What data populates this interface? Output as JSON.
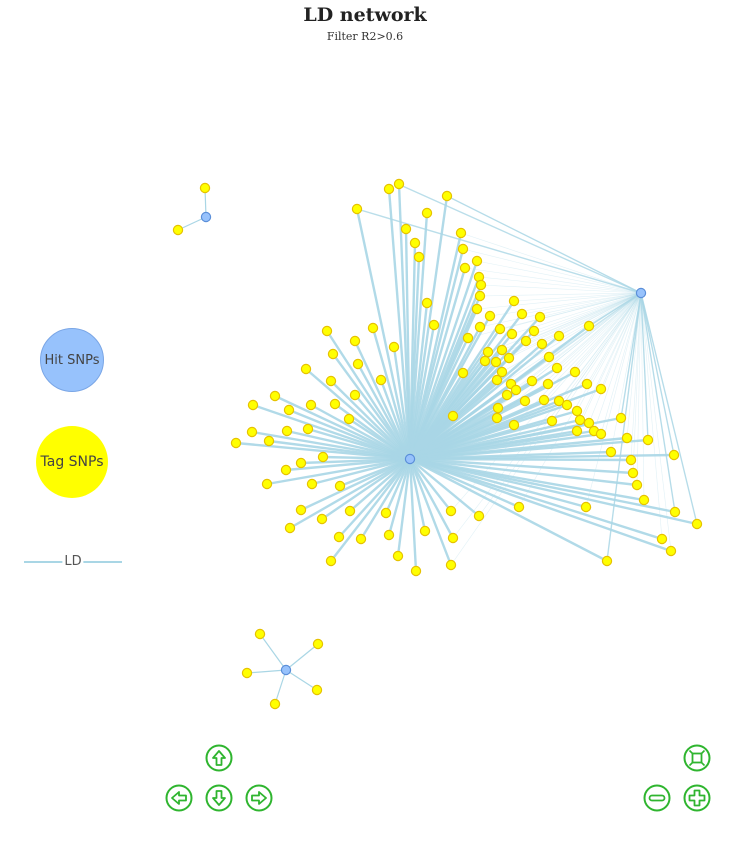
{
  "title": "LD network",
  "subtitle": "Filter R2>0.6",
  "legend": {
    "hit_label": "Hit SNPs",
    "tag_label": "Tag SNPs",
    "ld_label": "LD"
  },
  "colors": {
    "hit": "#97c2fc",
    "tag": "#ffff00",
    "edge": "#a9d6e5",
    "nav": "#2fb52f"
  },
  "controls": [
    "zoom-extends",
    "up",
    "left",
    "down",
    "right",
    "zoom-out",
    "zoom-in"
  ]
}
